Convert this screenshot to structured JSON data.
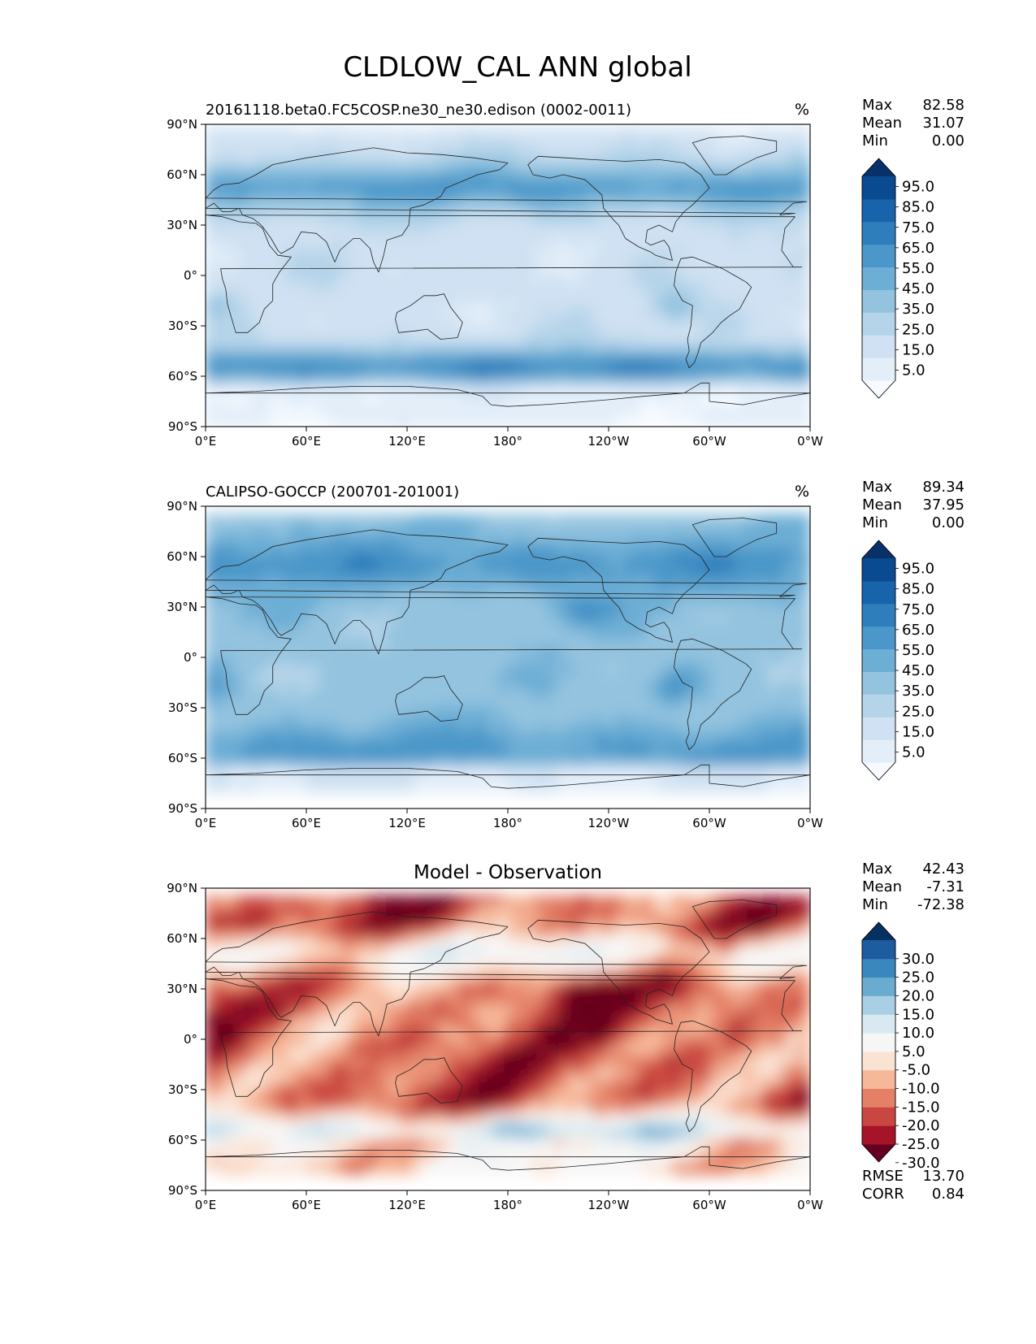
{
  "figure": {
    "title": "CLDLOW_CAL ANN global"
  },
  "colors": {
    "blues": [
      "#f7fbff",
      "#e3eef9",
      "#cfe1f2",
      "#b5d4e9",
      "#93c3df",
      "#6daed5",
      "#4b97c9",
      "#2f7ebc",
      "#1864aa",
      "#0a4a90",
      "#08306b"
    ],
    "diff": [
      "#67001f",
      "#a51429",
      "#ca4741",
      "#e48066",
      "#f7b799",
      "#fbe3d4",
      "#f7f6f6",
      "#d9e9f1",
      "#a9cfe5",
      "#6aacd0",
      "#3a87bd",
      "#1c5c9f",
      "#053061"
    ]
  },
  "chart_data": [
    {
      "type": "heatmap",
      "map": "global",
      "title": "20161118.beta0.FC5COSP.ne30_ne30.edison (0002-0011)",
      "units": "%",
      "yticks": [
        "90°N",
        "60°N",
        "30°N",
        "0°",
        "30°S",
        "60°S",
        "90°S"
      ],
      "xticks": [
        "0°E",
        "60°E",
        "120°E",
        "180°",
        "120°W",
        "60°W",
        "0°W"
      ],
      "stats": [
        {
          "label": "Max",
          "value": "82.58"
        },
        {
          "label": "Mean",
          "value": "31.07"
        },
        {
          "label": "Min",
          "value": "0.00"
        }
      ],
      "colorbar": {
        "levels": [
          "95.0",
          "85.0",
          "75.0",
          "65.0",
          "55.0",
          "45.0",
          "35.0",
          "25.0",
          "15.0",
          "5.0"
        ]
      }
    },
    {
      "type": "heatmap",
      "map": "global",
      "title": "CALIPSO-GOCCP (200701-201001)",
      "units": "%",
      "yticks": [
        "90°N",
        "60°N",
        "30°N",
        "0°",
        "30°S",
        "60°S",
        "90°S"
      ],
      "xticks": [
        "0°E",
        "60°E",
        "120°E",
        "180°",
        "120°W",
        "60°W",
        "0°W"
      ],
      "stats": [
        {
          "label": "Max",
          "value": "89.34"
        },
        {
          "label": "Mean",
          "value": "37.95"
        },
        {
          "label": "Min",
          "value": "0.00"
        }
      ],
      "colorbar": {
        "levels": [
          "95.0",
          "85.0",
          "75.0",
          "65.0",
          "55.0",
          "45.0",
          "35.0",
          "25.0",
          "15.0",
          "5.0"
        ]
      }
    },
    {
      "type": "heatmap",
      "map": "global",
      "title": "Model - Observation",
      "units": "",
      "yticks": [
        "90°N",
        "60°N",
        "30°N",
        "0°",
        "30°S",
        "60°S",
        "90°S"
      ],
      "xticks": [
        "0°E",
        "60°E",
        "120°E",
        "180°",
        "120°W",
        "60°W",
        "0°W"
      ],
      "stats": [
        {
          "label": "Max",
          "value": "42.43"
        },
        {
          "label": "Mean",
          "value": "-7.31"
        },
        {
          "label": "Min",
          "value": "-72.38"
        }
      ],
      "extra_stats": [
        {
          "label": "RMSE",
          "value": "13.70"
        },
        {
          "label": "CORR",
          "value": "0.84"
        }
      ],
      "colorbar": {
        "levels": [
          "30.0",
          "25.0",
          "20.0",
          "15.0",
          "10.0",
          "5.0",
          "-5.0",
          "-10.0",
          "-15.0",
          "-20.0",
          "-25.0",
          "-30.0"
        ]
      }
    }
  ]
}
